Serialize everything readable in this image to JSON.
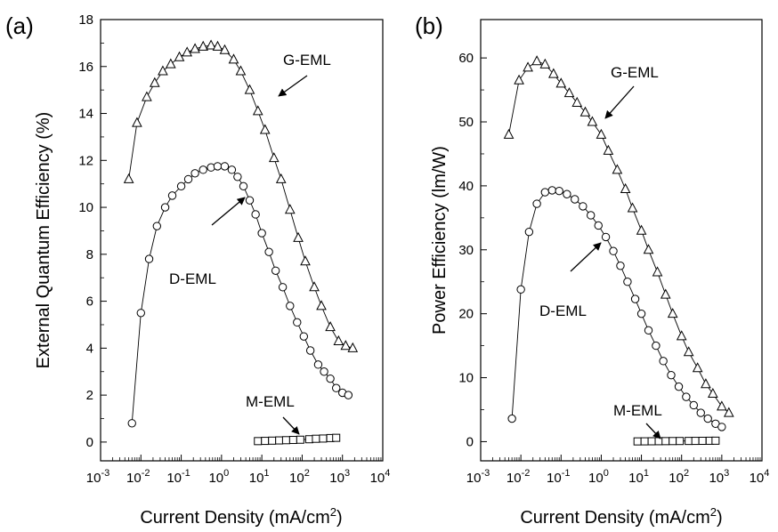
{
  "chart_data": [
    {
      "panel_label": "(a)",
      "type": "scatter",
      "xlabel": "Current Density (mA/cm",
      "xlabel_sup": "2",
      "xlabel_suffix": ")",
      "ylabel": "External Quantum Efficiency (%)",
      "xscale": "log",
      "xlim": [
        0.001,
        10000
      ],
      "ylim": [
        -0.8,
        18
      ],
      "x_ticks": [
        0.001,
        0.01,
        0.1,
        1,
        10,
        100,
        1000,
        10000
      ],
      "x_tick_labels": [
        {
          "base": "10",
          "exp": "-3"
        },
        {
          "base": "10",
          "exp": "-2"
        },
        {
          "base": "10",
          "exp": "-1"
        },
        {
          "base": "10",
          "exp": "0"
        },
        {
          "base": "10",
          "exp": "1"
        },
        {
          "base": "10",
          "exp": "2"
        },
        {
          "base": "10",
          "exp": "3"
        },
        {
          "base": "10",
          "exp": "4"
        }
      ],
      "y_ticks": [
        0,
        2,
        4,
        6,
        8,
        10,
        12,
        14,
        16,
        18
      ],
      "y_tick_labels": [
        "0",
        "2",
        "4",
        "6",
        "8",
        "10",
        "12",
        "14",
        "16",
        "18"
      ],
      "series": [
        {
          "name": "G-EML",
          "marker": "triangle",
          "x": [
            0.005,
            0.008,
            0.014,
            0.022,
            0.035,
            0.055,
            0.09,
            0.14,
            0.22,
            0.35,
            0.55,
            0.8,
            1.2,
            2,
            3,
            5,
            8,
            12,
            20,
            30,
            50,
            80,
            120,
            200,
            300,
            500,
            800,
            1200,
            1800
          ],
          "y": [
            11.2,
            13.6,
            14.7,
            15.3,
            15.8,
            16.1,
            16.4,
            16.6,
            16.75,
            16.85,
            16.9,
            16.85,
            16.7,
            16.3,
            15.8,
            15.0,
            14.1,
            13.3,
            12.1,
            11.2,
            9.9,
            8.7,
            7.7,
            6.6,
            5.8,
            4.9,
            4.3,
            4.1,
            4.0
          ]
        },
        {
          "name": "D-EML",
          "marker": "circle",
          "x": [
            0.006,
            0.01,
            0.016,
            0.025,
            0.04,
            0.06,
            0.1,
            0.15,
            0.22,
            0.35,
            0.55,
            0.8,
            1.2,
            1.8,
            2.5,
            3.5,
            5,
            7,
            10,
            15,
            22,
            33,
            50,
            75,
            110,
            160,
            250,
            350,
            500,
            700,
            1000,
            1400
          ],
          "y": [
            0.8,
            5.5,
            7.8,
            9.2,
            10.0,
            10.5,
            10.9,
            11.2,
            11.45,
            11.6,
            11.7,
            11.75,
            11.75,
            11.6,
            11.3,
            10.9,
            10.3,
            9.7,
            8.9,
            8.1,
            7.3,
            6.6,
            5.8,
            5.1,
            4.5,
            3.9,
            3.3,
            3.0,
            2.7,
            2.3,
            2.1,
            2.0
          ]
        },
        {
          "name": "M-EML",
          "marker": "square",
          "x": [
            8,
            12,
            18,
            27,
            40,
            60,
            90,
            150,
            220,
            330,
            500,
            700
          ],
          "y": [
            0.04,
            0.05,
            0.06,
            0.07,
            0.08,
            0.09,
            0.1,
            0.12,
            0.14,
            0.15,
            0.17,
            0.18
          ]
        }
      ],
      "annotations": [
        "G-EML",
        "D-EML",
        "M-EML"
      ]
    },
    {
      "panel_label": "(b)",
      "type": "scatter",
      "xlabel": "Current Density (mA/cm",
      "xlabel_sup": "2",
      "xlabel_suffix": ")",
      "ylabel": "Power Efficiency (lm/W)",
      "xscale": "log",
      "xlim": [
        0.001,
        10000
      ],
      "ylim": [
        -3,
        66
      ],
      "x_ticks": [
        0.001,
        0.01,
        0.1,
        1,
        10,
        100,
        1000,
        10000
      ],
      "x_tick_labels": [
        {
          "base": "10",
          "exp": "-3"
        },
        {
          "base": "10",
          "exp": "-2"
        },
        {
          "base": "10",
          "exp": "-1"
        },
        {
          "base": "10",
          "exp": "0"
        },
        {
          "base": "10",
          "exp": "1"
        },
        {
          "base": "10",
          "exp": "2"
        },
        {
          "base": "10",
          "exp": "3"
        },
        {
          "base": "10",
          "exp": "4"
        }
      ],
      "y_ticks": [
        0,
        10,
        20,
        30,
        40,
        50,
        60
      ],
      "y_tick_labels": [
        "0",
        "10",
        "20",
        "30",
        "40",
        "50",
        "60"
      ],
      "series": [
        {
          "name": "G-EML",
          "marker": "triangle",
          "x": [
            0.005,
            0.009,
            0.015,
            0.025,
            0.04,
            0.065,
            0.1,
            0.16,
            0.25,
            0.4,
            0.6,
            1,
            1.5,
            2.5,
            4,
            6,
            10,
            15,
            25,
            40,
            60,
            100,
            150,
            250,
            400,
            600,
            1000,
            1500
          ],
          "y": [
            48,
            56.5,
            58.5,
            59.5,
            59,
            57.5,
            56,
            54.5,
            53,
            51.5,
            50,
            48,
            45.5,
            42.5,
            39.5,
            36.5,
            33,
            30,
            26.5,
            23,
            20,
            16.5,
            14,
            11.5,
            9,
            7.5,
            5.5,
            4.5
          ]
        },
        {
          "name": "D-EML",
          "marker": "circle",
          "x": [
            0.006,
            0.01,
            0.016,
            0.025,
            0.04,
            0.06,
            0.09,
            0.14,
            0.22,
            0.35,
            0.55,
            0.85,
            1.3,
            2,
            3,
            4.5,
            7,
            10,
            15,
            23,
            35,
            55,
            85,
            130,
            200,
            300,
            450,
            700,
            1000
          ],
          "y": [
            3.6,
            23.8,
            32.8,
            37.2,
            39,
            39.3,
            39.2,
            38.7,
            37.9,
            36.8,
            35.4,
            33.8,
            32,
            29.8,
            27.5,
            25,
            22.3,
            20,
            17.4,
            15,
            12.6,
            10.4,
            8.6,
            7,
            5.7,
            4.5,
            3.6,
            2.8,
            2.3
          ]
        },
        {
          "name": "M-EML",
          "marker": "square",
          "x": [
            8,
            12,
            18,
            27,
            40,
            60,
            90,
            150,
            220,
            330,
            500,
            700
          ],
          "y": [
            0.04,
            0.05,
            0.06,
            0.07,
            0.08,
            0.09,
            0.1,
            0.11,
            0.12,
            0.13,
            0.14,
            0.15
          ]
        }
      ],
      "annotations": [
        "G-EML",
        "D-EML",
        "M-EML"
      ]
    }
  ]
}
